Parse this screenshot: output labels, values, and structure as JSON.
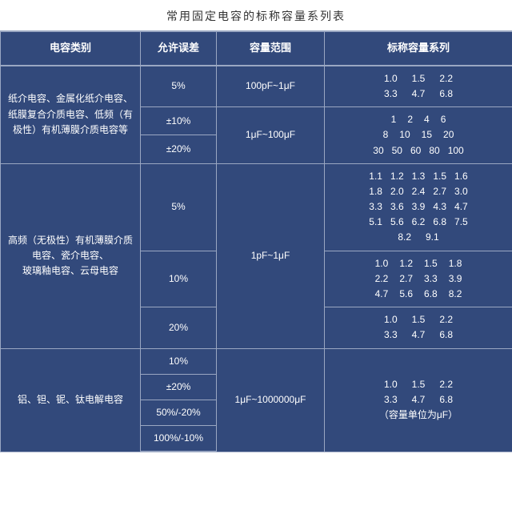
{
  "title": "常用固定电容的标称容量系列表",
  "headers": {
    "category": "电容类别",
    "tolerance": "允许误差",
    "range": "容量范围",
    "series": "标称容量系列"
  },
  "groups": [
    {
      "category": "纸介电容、金属化纸介电容、纸膜复合介质电容、低频（有极性）有机薄膜介质电容等",
      "rows": [
        {
          "tolerance": "5%",
          "range": "100pF~1μF",
          "series_lines": [
            [
              "1.0",
              "1.5",
              "2.2"
            ],
            [
              "3.3",
              "4.7",
              "6.8"
            ]
          ]
        },
        {
          "tolerance": "±10%",
          "range": "1μF~100μF",
          "series_lines": [
            [
              "1",
              "2",
              "4",
              "6"
            ],
            [
              "8",
              "10",
              "15",
              "20"
            ],
            [
              "30",
              "50",
              "60",
              "80",
              "100"
            ]
          ],
          "range_rowspan": 2,
          "series_rowspan": 2
        },
        {
          "tolerance": "±20%"
        }
      ]
    },
    {
      "category": "高频（无极性）有机薄膜介质电容、瓷介电容、\n玻璃釉电容、云母电容",
      "rows": [
        {
          "tolerance": "5%",
          "range": "1pF~1μF",
          "range_rowspan": 3,
          "series_lines": [
            [
              "1.1",
              "1.2",
              "1.3",
              "1.5",
              "1.6"
            ],
            [
              "1.8",
              "2.0",
              "2.4",
              "2.7",
              "3.0"
            ],
            [
              "3.3",
              "3.6",
              "3.9",
              "4.3",
              "4.7"
            ],
            [
              "5.1",
              "5.6",
              "6.2",
              "6.8",
              "7.5"
            ],
            [
              "8.2",
              "9.1"
            ]
          ]
        },
        {
          "tolerance": "10%",
          "series_lines": [
            [
              "1.0",
              "1.2",
              "1.5",
              "1.8"
            ],
            [
              "2.2",
              "2.7",
              "3.3",
              "3.9"
            ],
            [
              "4.7",
              "5.6",
              "6.8",
              "8.2"
            ]
          ]
        },
        {
          "tolerance": "20%",
          "series_lines": [
            [
              "1.0",
              "1.5",
              "2.2"
            ],
            [
              "3.3",
              "4.7",
              "6.8"
            ]
          ]
        }
      ]
    },
    {
      "category": "铝、钽、铌、钛电解电容",
      "rows": [
        {
          "tolerance": "10%",
          "range": "1μF~1000000μF",
          "range_rowspan": 4,
          "series_lines": [
            [
              "1.0",
              "1.5",
              "2.2"
            ],
            [
              "3.3",
              "4.7",
              "6.8"
            ],
            [
              "（容量单位为μF）"
            ]
          ],
          "series_rowspan": 4
        },
        {
          "tolerance": "±20%"
        },
        {
          "tolerance": "50%/-20%"
        },
        {
          "tolerance": "100%/-10%"
        }
      ]
    }
  ],
  "style": {
    "header_bg": "#32497b",
    "cell_bg": "#32497b",
    "border_color": "#9aa7c2",
    "text_color": "#ffffff",
    "title_color": "#333333"
  }
}
